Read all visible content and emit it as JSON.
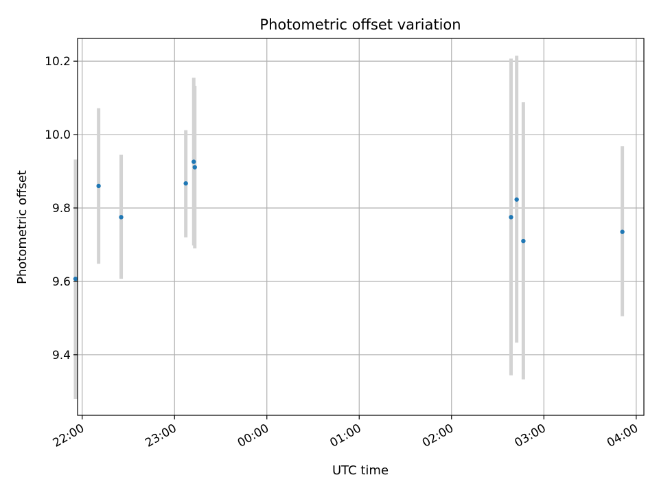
{
  "chart_data": {
    "type": "scatter",
    "title": "Photometric offset variation",
    "xlabel": "UTC time",
    "ylabel": "Photometric offset",
    "x_ticks": [
      "22:00",
      "23:00",
      "00:00",
      "01:00",
      "02:00",
      "03:00",
      "04:00"
    ],
    "y_ticks": [
      "9.4",
      "9.6",
      "9.8",
      "10.0",
      "10.2"
    ],
    "xlim": [
      "21:57",
      "04:05"
    ],
    "ylim": [
      9.235,
      10.262
    ],
    "grid": true,
    "point_color": "#1f77b4",
    "errorbar_color": "#d3d3d3",
    "points": [
      {
        "time": "21:55:40",
        "value": 9.607,
        "low": 9.28,
        "high": 9.932
      },
      {
        "time": "22:10:40",
        "value": 9.86,
        "low": 9.648,
        "high": 10.072
      },
      {
        "time": "22:25:20",
        "value": 9.775,
        "low": 9.607,
        "high": 9.945
      },
      {
        "time": "23:07:20",
        "value": 9.867,
        "low": 9.72,
        "high": 10.012
      },
      {
        "time": "23:12:30",
        "value": 9.926,
        "low": 9.698,
        "high": 10.155
      },
      {
        "time": "23:13:10",
        "value": 9.911,
        "low": 9.69,
        "high": 10.133
      },
      {
        "time": "02:38:40",
        "value": 9.775,
        "low": 9.344,
        "high": 10.207
      },
      {
        "time": "02:42:20",
        "value": 9.823,
        "low": 9.433,
        "high": 10.215
      },
      {
        "time": "02:46:40",
        "value": 9.71,
        "low": 9.333,
        "high": 10.088
      },
      {
        "time": "03:51:00",
        "value": 9.735,
        "low": 9.505,
        "high": 9.968
      }
    ]
  }
}
